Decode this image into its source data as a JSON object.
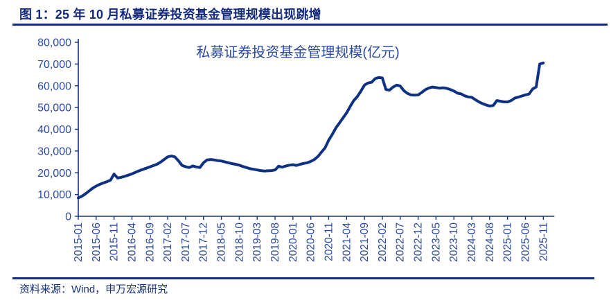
{
  "figure": {
    "title": "图 1：25 年 10 月私募证券投资基金管理规模出现跳增"
  },
  "source": {
    "label": "资料来源：Wind，申万宏源研究"
  },
  "colors": {
    "accent_navy": "#13297A",
    "line": "#0E3182",
    "axis": "#16327E",
    "labels": "#2B4A9E"
  },
  "chart_data": {
    "type": "line",
    "title": "私募证券投资基金管理规模(亿元)",
    "x_frequency": "monthly",
    "x_start": "2015-01",
    "x_end": "2025-11",
    "tick_interval": 5,
    "tick_labels": [
      "2015-01",
      "2015-06",
      "2015-11",
      "2016-04",
      "2016-09",
      "2017-02",
      "2017-07",
      "2017-12",
      "2018-05",
      "2018-10",
      "2019-03",
      "2019-08",
      "2020-01",
      "2020-06",
      "2020-11",
      "2021-04",
      "2021-09",
      "2022-02",
      "2022-07",
      "2022-12",
      "2023-05",
      "2023-10",
      "2024-03",
      "2024-08",
      "2025-01",
      "2025-06",
      "2025-11"
    ],
    "y_tick_labels": [
      "0",
      "10,000",
      "20,000",
      "30,000",
      "40,000",
      "50,000",
      "60,000",
      "70,000",
      "80,000"
    ],
    "ylim": [
      0,
      80000
    ],
    "y_tick_step": 10000,
    "grid": false,
    "legend": "none",
    "values": [
      8400,
      9200,
      10300,
      11600,
      12900,
      13900,
      14700,
      15300,
      15900,
      16600,
      19400,
      17600,
      17900,
      18400,
      18900,
      19500,
      20200,
      20900,
      21500,
      22100,
      22700,
      23300,
      23900,
      24900,
      26100,
      27300,
      27700,
      27300,
      25500,
      23400,
      22800,
      22400,
      23100,
      22700,
      22400,
      24600,
      25900,
      26100,
      25900,
      25600,
      25400,
      25000,
      24600,
      24200,
      23900,
      23500,
      22900,
      22400,
      21900,
      21600,
      21300,
      21000,
      20800,
      20900,
      21000,
      21300,
      23000,
      22600,
      23100,
      23500,
      23700,
      23400,
      23900,
      24300,
      24600,
      25200,
      26100,
      27500,
      29500,
      31500,
      35000,
      37600,
      40600,
      42900,
      45200,
      47500,
      50500,
      53200,
      55000,
      57500,
      60300,
      61300,
      61600,
      63300,
      63800,
      63600,
      58300,
      58000,
      59400,
      60300,
      59900,
      57800,
      56500,
      55800,
      55700,
      55800,
      56900,
      58200,
      59000,
      59400,
      59200,
      58900,
      59100,
      58800,
      58300,
      57600,
      56600,
      56300,
      55400,
      54900,
      54700,
      53600,
      52600,
      51800,
      51200,
      50700,
      50900,
      53200,
      52900,
      52600,
      52600,
      53200,
      54300,
      54800,
      55300,
      55800,
      56200,
      58500,
      59500,
      70000,
      70500
    ]
  }
}
